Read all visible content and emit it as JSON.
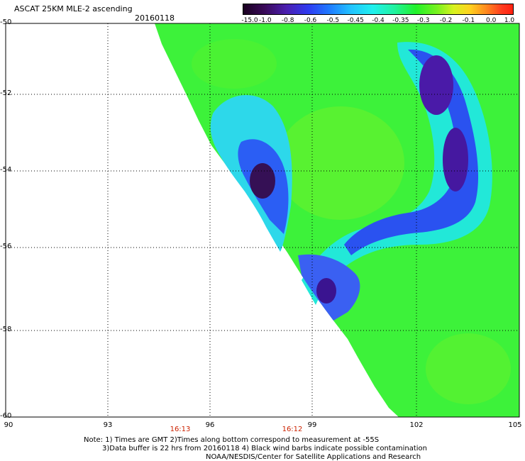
{
  "title": "ASCAT 25KM MLE-2 ascending",
  "date": "20160118",
  "colorbar": {
    "labels": [
      "-15.0",
      "-1.0",
      "-0.8",
      "-0.6",
      "-0.5",
      "-0.45",
      "-0.4",
      "-0.35",
      "-0.3",
      "-0.2",
      "-0.1",
      "0.0",
      "1.0"
    ]
  },
  "axes": {
    "y_labels": [
      "-50",
      "-52",
      "-54",
      "-56",
      "-58",
      "-60"
    ],
    "x_labels": [
      "90",
      "93",
      "96",
      "99",
      "102",
      "105"
    ]
  },
  "times": [
    "16:13",
    "16:12"
  ],
  "notes": {
    "line1": "Note: 1) Times are GMT 2)Times along bottom correspond to measurement at -55S",
    "line2": "3)Data buffer is 22 hrs from 20160118 4) Black wind barbs indicate possible contamination",
    "line3": "NOAA/NESDIS/Center for Satellite Applications and Research"
  },
  "map": {
    "lat_range": [
      -60,
      -50
    ],
    "lon_range": [
      90,
      105
    ],
    "field": "MLE-2 ascending",
    "background_color": "#ffffff",
    "swath_base_color": "#3df23a"
  }
}
